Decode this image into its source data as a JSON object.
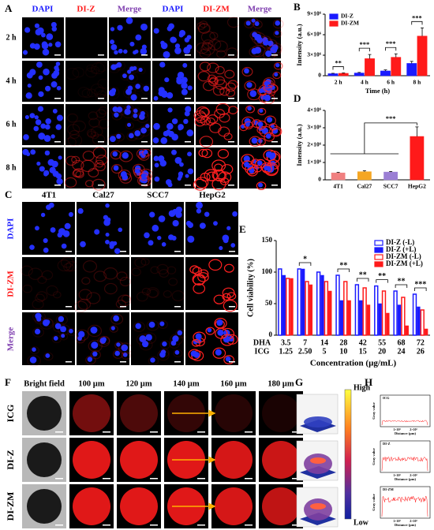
{
  "panels": {
    "a": "A",
    "b": "B",
    "c": "C",
    "d": "D",
    "e": "E",
    "f": "F",
    "g": "G",
    "h": "H"
  },
  "panel_a": {
    "column_labels": [
      "DAPI",
      "DI-Z",
      "Merge",
      "DAPI",
      "DI-ZM",
      "Merge"
    ],
    "row_labels": [
      "2 h",
      "4 h",
      "6 h",
      "8 h"
    ]
  },
  "panel_c": {
    "column_labels": [
      "4T1",
      "Cal27",
      "SCC7",
      "HepG2"
    ],
    "row_labels": [
      "DAPI",
      "DI-ZM",
      "Merge"
    ]
  },
  "panel_f": {
    "column_labels": [
      "Bright field",
      "100 µm",
      "120 µm",
      "140 µm",
      "160 µm",
      "180 µm"
    ],
    "row_labels": [
      "ICG",
      "DI-Z",
      "DI-ZM"
    ]
  },
  "panel_g": {
    "high": "High",
    "low": "Low"
  },
  "panel_h": {
    "titles": [
      "ICG",
      "DI-Z",
      "DI-ZM"
    ],
    "y_label": "Gray value",
    "x_label": "Distance (µm)",
    "xticks": [
      "1×10³",
      "2×10³"
    ]
  },
  "chart_data": [
    {
      "type": "bar",
      "y_label": "Intensity (a.u.)",
      "x_label": "Time (h)",
      "categories": [
        "2 h",
        "4 h",
        "6 h",
        "8 h"
      ],
      "series": [
        {
          "name": "DI-Z",
          "color": "#1a1aff",
          "values": [
            300000,
            400000,
            700000,
            1800000
          ],
          "errors": [
            50000,
            80000,
            150000,
            300000
          ]
        },
        {
          "name": "DI-ZM",
          "color": "#ff1a1a",
          "values": [
            350000,
            2500000,
            2700000,
            5800000
          ],
          "errors": [
            60000,
            600000,
            500000,
            1200000
          ]
        }
      ],
      "ylim": [
        0,
        9000000
      ],
      "yticks": [
        0,
        {
          "value": 3000000,
          "label": "3×10⁶"
        },
        {
          "value": 6000000,
          "label": "6×10⁶"
        },
        {
          "value": 9000000,
          "label": "9×10⁶"
        }
      ],
      "legend": "upper left",
      "annotations": [
        {
          "text": "**",
          "category": 0
        },
        {
          "text": "***",
          "category": 1
        },
        {
          "text": "***",
          "category": 2
        },
        {
          "text": "***",
          "category": 3
        }
      ]
    },
    {
      "type": "bar",
      "y_label": "Intensity (a.u.)",
      "categories": [
        "4T1",
        "Cal27",
        "SCC7",
        "HepG2"
      ],
      "values": [
        400000,
        470000,
        450000,
        2500000
      ],
      "errors": [
        30000,
        50000,
        30000,
        550000
      ],
      "colors": [
        "#f08080",
        "#f5a623",
        "#9b7fd4",
        "#ff1a1a"
      ],
      "ylim": [
        0,
        4000000
      ],
      "yticks": [
        0,
        {
          "value": 1000000,
          "label": "1×10⁶"
        },
        {
          "value": 2000000,
          "label": "2×10⁶"
        },
        {
          "value": 3000000,
          "label": "3×10⁶"
        },
        {
          "value": 4000000,
          "label": "4×10⁶"
        }
      ],
      "annotations": [
        {
          "text": "***",
          "category": 3
        }
      ]
    },
    {
      "type": "bar",
      "y_label": "Cell viability (%)",
      "x_label": "Concentration (µg/mL)",
      "categories": [
        "3.5",
        "7",
        "14",
        "28",
        "42",
        "55",
        "68",
        "72"
      ],
      "x_rows": [
        {
          "name": "DHA",
          "labels": [
            "3.5",
            "7",
            "14",
            "28",
            "42",
            "55",
            "68",
            "72"
          ]
        },
        {
          "name": "ICG",
          "labels": [
            "1.25",
            "2.50",
            "5",
            "10",
            "15",
            "20",
            "24",
            "26"
          ]
        }
      ],
      "series": [
        {
          "name": "DI-Z (-L)",
          "color": "#1a1aff",
          "hollow": true,
          "values": [
            105,
            105,
            100,
            95,
            80,
            78,
            70,
            65
          ]
        },
        {
          "name": "DI-Z (+L)",
          "color": "#1a1aff",
          "hollow": false,
          "values": [
            95,
            105,
            95,
            55,
            55,
            50,
            48,
            45
          ]
        },
        {
          "name": "DI-ZM (-L)",
          "color": "#ff1a1a",
          "hollow": true,
          "values": [
            90,
            85,
            85,
            85,
            75,
            70,
            60,
            40
          ]
        },
        {
          "name": "DI-ZM (+L)",
          "color": "#ff1a1a",
          "hollow": false,
          "values": [
            90,
            80,
            70,
            55,
            48,
            35,
            15,
            10
          ]
        }
      ],
      "ylim": [
        0,
        150
      ],
      "yticks": [
        0,
        50,
        100,
        150
      ],
      "legend": "upper right",
      "annotations": [
        {
          "text": "*",
          "category": 1
        },
        {
          "text": "**",
          "category": 3
        },
        {
          "text": "**",
          "category": 4
        },
        {
          "text": "**",
          "category": 5
        },
        {
          "text": "**",
          "category": 6
        },
        {
          "text": "***",
          "category": 7
        }
      ]
    }
  ]
}
